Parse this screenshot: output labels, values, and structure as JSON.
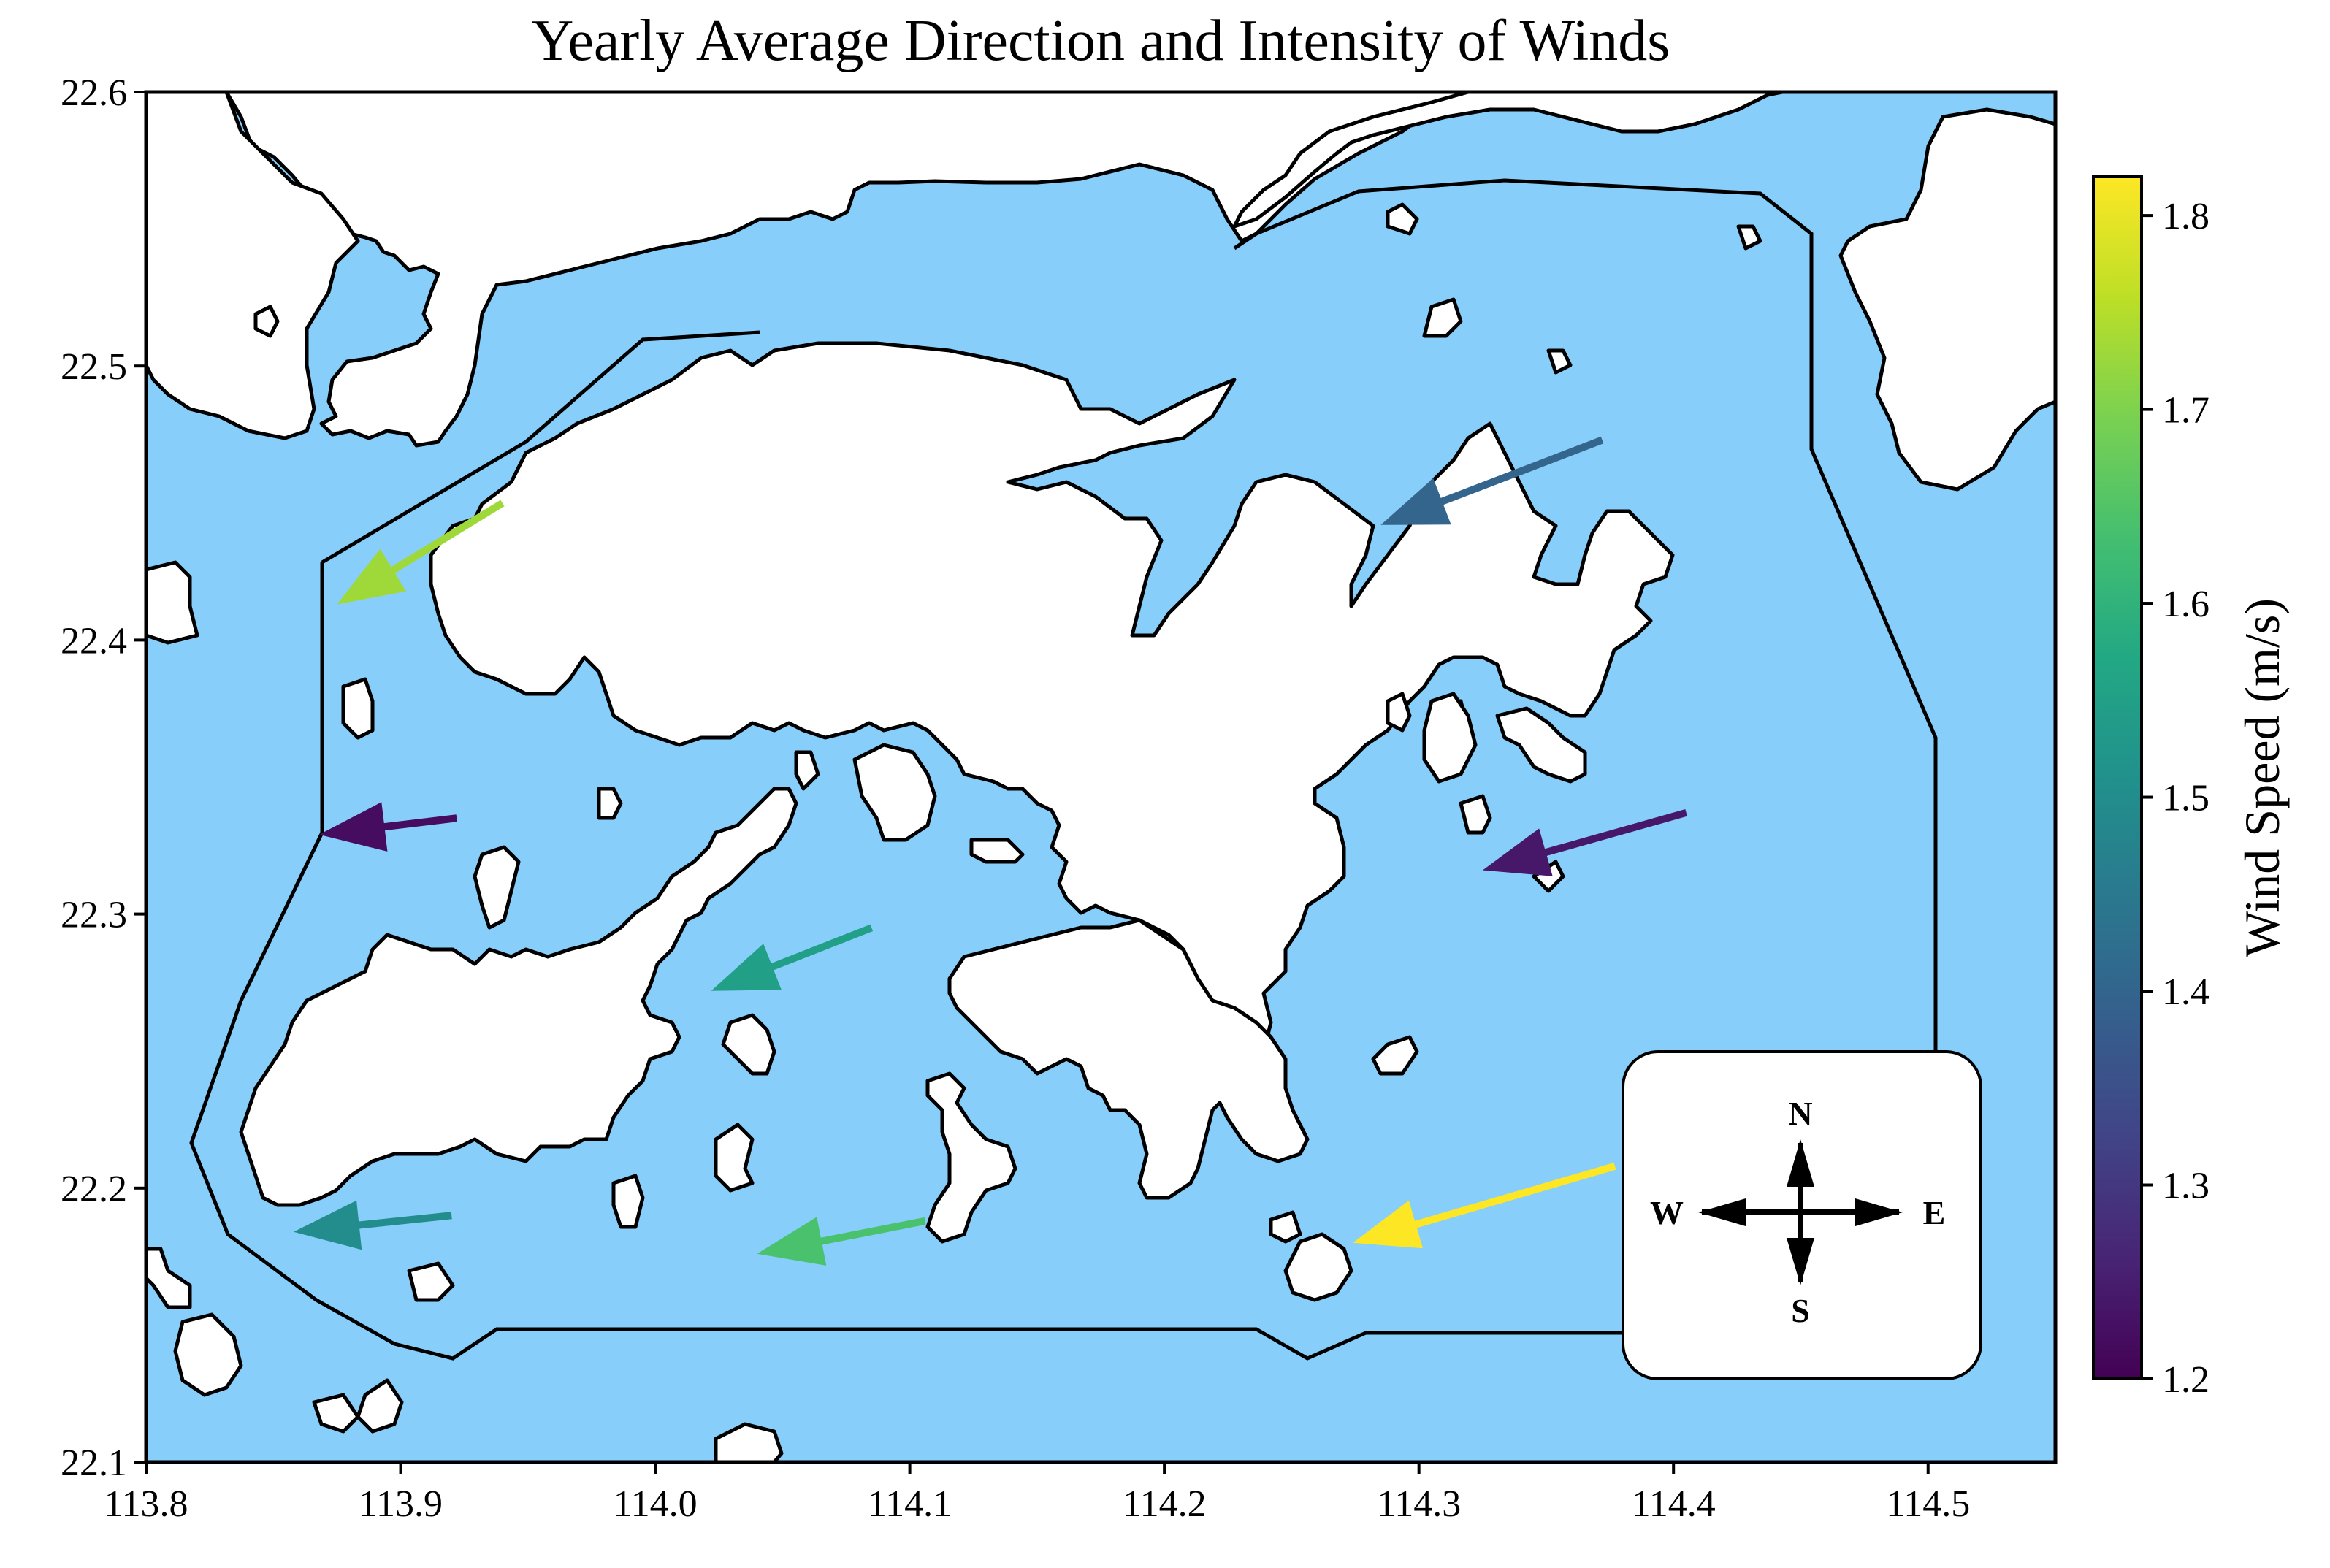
{
  "title": "Yearly Average Direction and Intensity of Winds",
  "colors": {
    "sea": "#87cefa",
    "land": "#ffffff",
    "outline": "#000000"
  },
  "chart_data": {
    "type": "quiver-map",
    "title": "Yearly Average Direction and Intensity of Winds",
    "xlim": [
      113.8,
      114.55
    ],
    "ylim": [
      22.1,
      22.6
    ],
    "x_ticks": [
      "113.8",
      "113.9",
      "114.0",
      "114.1",
      "114.2",
      "114.3",
      "114.4",
      "114.5"
    ],
    "y_ticks": [
      "22.1",
      "22.2",
      "22.3",
      "22.4",
      "22.5",
      "22.6"
    ],
    "colorbar": {
      "label": "Wind Speed (m/s)",
      "range": [
        1.2,
        1.82
      ],
      "ticks": [
        "1.2",
        "1.3",
        "1.4",
        "1.5",
        "1.6",
        "1.7",
        "1.8"
      ],
      "colormap": "viridis"
    },
    "compass": {
      "n": "N",
      "s": "S",
      "e": "E",
      "w": "W"
    },
    "arrows": [
      {
        "lon": 113.94,
        "lat": 22.45,
        "tip_lon": 113.875,
        "tip_lat": 22.413,
        "speed": 1.73
      },
      {
        "lon": 114.372,
        "lat": 22.473,
        "tip_lon": 114.285,
        "tip_lat": 22.442,
        "speed": 1.4
      },
      {
        "lon": 113.922,
        "lat": 22.335,
        "tip_lon": 113.868,
        "tip_lat": 22.329,
        "speed": 1.22
      },
      {
        "lon": 114.405,
        "lat": 22.337,
        "tip_lon": 114.325,
        "tip_lat": 22.316,
        "speed": 1.24
      },
      {
        "lon": 114.085,
        "lat": 22.295,
        "tip_lon": 114.022,
        "tip_lat": 22.272,
        "speed": 1.55
      },
      {
        "lon": 113.92,
        "lat": 22.19,
        "tip_lon": 113.858,
        "tip_lat": 22.184,
        "speed": 1.5
      },
      {
        "lon": 114.106,
        "lat": 22.188,
        "tip_lon": 114.04,
        "tip_lat": 22.176,
        "speed": 1.64
      },
      {
        "lon": 114.377,
        "lat": 22.208,
        "tip_lon": 114.274,
        "tip_lat": 22.18,
        "speed": 1.82
      }
    ]
  }
}
